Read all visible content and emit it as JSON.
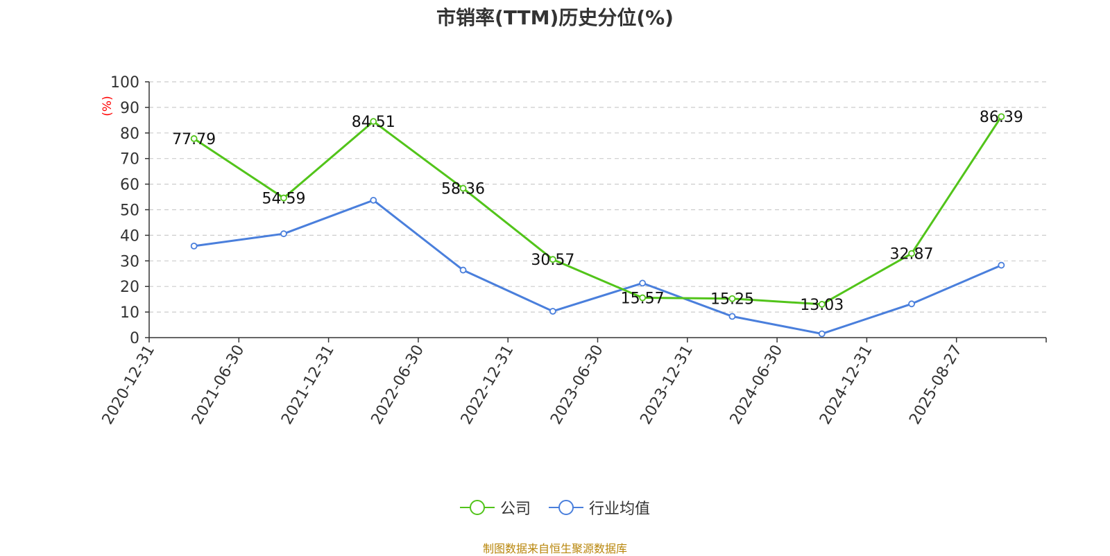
{
  "chart_data": {
    "type": "line",
    "title": "市销率(TTM)历史分位(%)",
    "ylabel": "(%)",
    "xlabel": "",
    "ylim": [
      0,
      100
    ],
    "yticks": [
      0,
      10,
      20,
      30,
      40,
      50,
      60,
      70,
      80,
      90,
      100
    ],
    "grid": true,
    "legend_position": "bottom",
    "categories": [
      "2020-12-31",
      "2021-06-30",
      "2021-12-31",
      "2022-06-30",
      "2022-12-31",
      "2023-06-30",
      "2023-12-31",
      "2024-06-30",
      "2024-12-31",
      "2025-08-27"
    ],
    "series": [
      {
        "name": "公司",
        "color": "#52c41a",
        "show_labels": true,
        "values": [
          77.79,
          54.59,
          84.51,
          58.36,
          30.57,
          15.57,
          15.25,
          13.03,
          32.87,
          86.39
        ]
      },
      {
        "name": "行业均值",
        "color": "#4a7fdc",
        "show_labels": false,
        "values": [
          35.8,
          40.6,
          53.7,
          26.4,
          10.3,
          21.3,
          8.3,
          1.5,
          13.2,
          28.3
        ]
      }
    ]
  },
  "footer": {
    "source": "制图数据来自恒生聚源数据库"
  },
  "colors": {
    "ylabel": "#ff0000",
    "axis": "#333333",
    "grid": "#cccccc",
    "source": "#b8860b"
  }
}
